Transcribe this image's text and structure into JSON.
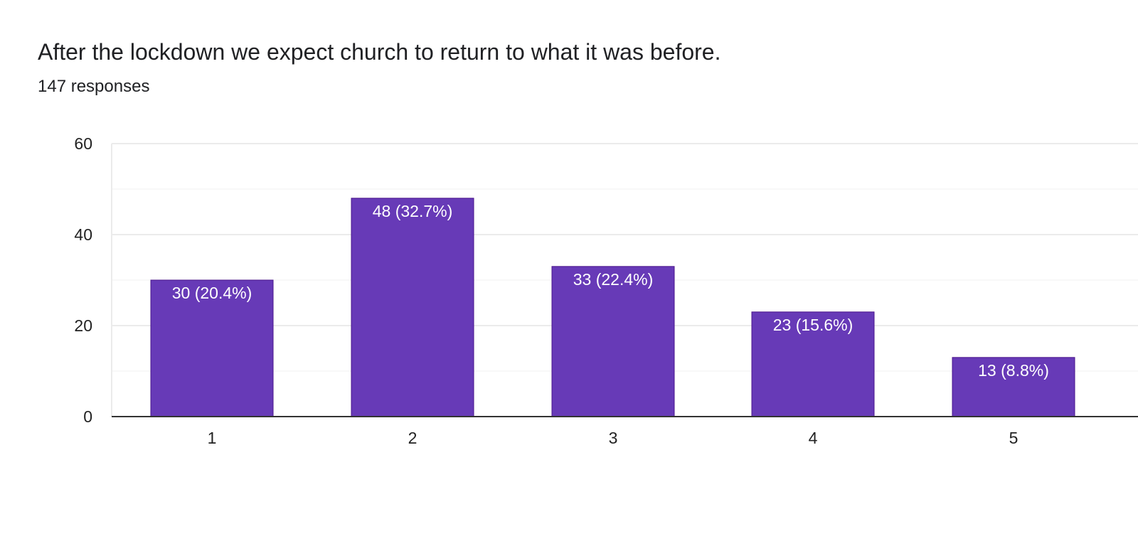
{
  "question": {
    "title": "After the lockdown we expect church to return to what it was before.",
    "responses": "147 responses"
  },
  "colors": {
    "bar": "#673ab7",
    "bar_border": "#4a148c",
    "bar_label": "#ffffff",
    "grid": "#ebebeb",
    "axis": "#333333",
    "tick_text": "#222222"
  },
  "chart_data": {
    "type": "bar",
    "title": "After the lockdown we expect church to return to what it was before.",
    "xlabel": "",
    "ylabel": "",
    "categories": [
      "1",
      "2",
      "3",
      "4",
      "5"
    ],
    "values": [
      30,
      48,
      33,
      23,
      13
    ],
    "data_labels": [
      "30 (20.4%)",
      "48 (32.7%)",
      "33 (22.4%)",
      "23 (15.6%)",
      "13 (8.8%)"
    ],
    "ylim": [
      0,
      60
    ],
    "yticks": [
      0,
      20,
      40,
      60
    ],
    "minor_gridlines": [
      10,
      30,
      50
    ],
    "grid": true
  }
}
